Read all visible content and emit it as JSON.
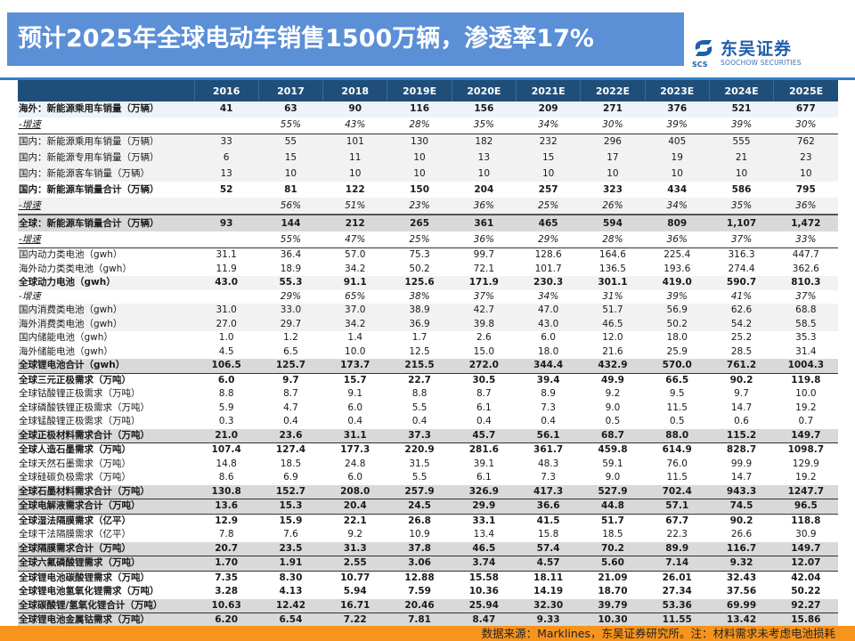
{
  "header": {
    "title": "预计2025年全球电动车销售1500万辆，渗透率17%",
    "logo": {
      "cn": "东吴证券",
      "en": "SOOCHOW SECURITIES",
      "abbr": "SCS",
      "brand_color": "#1f5fa8"
    }
  },
  "colors": {
    "title_bg": "#5b8fd6",
    "table_header_bg": "#1f4e79",
    "footer_bg": "#f7941d",
    "accent_line": "#2f7fc8"
  },
  "table": {
    "columns": [
      "",
      "2016",
      "2017",
      "2018",
      "2019E",
      "2020E",
      "2021E",
      "2022E",
      "2023E",
      "2024E",
      "2025E"
    ],
    "rows": [
      {
        "label": "海外：新能源乘用车销量（万辆）",
        "values": [
          "41",
          "63",
          "90",
          "116",
          "156",
          "209",
          "271",
          "376",
          "521",
          "677"
        ]
      },
      {
        "label": "-增速",
        "values": [
          "",
          "55%",
          "43%",
          "28%",
          "35%",
          "34%",
          "30%",
          "39%",
          "39%",
          "30%"
        ]
      },
      {
        "label": "国内：新能源乘用车销量（万辆）",
        "values": [
          "33",
          "55",
          "101",
          "130",
          "182",
          "232",
          "296",
          "405",
          "555",
          "762"
        ]
      },
      {
        "label": "国内：新能源专用车销量（万辆）",
        "values": [
          "6",
          "15",
          "11",
          "10",
          "13",
          "15",
          "17",
          "19",
          "21",
          "23"
        ]
      },
      {
        "label": "国内：新能源客车销量（万辆）",
        "values": [
          "13",
          "10",
          "10",
          "10",
          "10",
          "10",
          "10",
          "10",
          "10",
          "10"
        ]
      },
      {
        "label": "国内：新能源车销量合计（万辆）",
        "values": [
          "52",
          "81",
          "122",
          "150",
          "204",
          "257",
          "323",
          "434",
          "586",
          "795"
        ]
      },
      {
        "label": "-增速",
        "values": [
          "",
          "56%",
          "51%",
          "23%",
          "36%",
          "25%",
          "26%",
          "34%",
          "35%",
          "36%"
        ]
      },
      {
        "label": "全球：新能源车销量合计（万辆）",
        "values": [
          "93",
          "144",
          "212",
          "265",
          "361",
          "465",
          "594",
          "809",
          "1,107",
          "1,472"
        ]
      },
      {
        "label": "-增速",
        "values": [
          "",
          "55%",
          "47%",
          "25%",
          "36%",
          "29%",
          "28%",
          "36%",
          "37%",
          "33%"
        ]
      },
      {
        "label": "国内动力类电池（gwh）",
        "values": [
          "31.1",
          "36.4",
          "57.0",
          "75.3",
          "99.7",
          "128.6",
          "164.6",
          "225.4",
          "316.3",
          "447.7"
        ]
      },
      {
        "label": "海外动力类类电池（gwh）",
        "values": [
          "11.9",
          "18.9",
          "34.2",
          "50.2",
          "72.1",
          "101.7",
          "136.5",
          "193.6",
          "274.4",
          "362.6"
        ]
      },
      {
        "label": "全球动力电池（gwh）",
        "values": [
          "43.0",
          "55.3",
          "91.1",
          "125.6",
          "171.9",
          "230.3",
          "301.1",
          "419.0",
          "590.7",
          "810.3"
        ]
      },
      {
        "label": "-增速",
        "values": [
          "",
          "29%",
          "65%",
          "38%",
          "37%",
          "34%",
          "31%",
          "39%",
          "41%",
          "37%"
        ]
      },
      {
        "label": "国内消费类电池（gwh）",
        "values": [
          "31.0",
          "33.0",
          "37.0",
          "38.9",
          "42.7",
          "47.0",
          "51.7",
          "56.9",
          "62.6",
          "68.8"
        ]
      },
      {
        "label": "海外消费类电池（gwh）",
        "values": [
          "27.0",
          "29.7",
          "34.2",
          "36.9",
          "39.8",
          "43.0",
          "46.5",
          "50.2",
          "54.2",
          "58.5"
        ]
      },
      {
        "label": "国内储能电池（gwh）",
        "values": [
          "1.0",
          "1.2",
          "1.4",
          "1.7",
          "2.6",
          "6.0",
          "12.0",
          "18.0",
          "25.2",
          "35.3"
        ]
      },
      {
        "label": "海外储能电池（gwh）",
        "values": [
          "4.5",
          "6.5",
          "10.0",
          "12.5",
          "15.0",
          "18.0",
          "21.6",
          "25.9",
          "28.5",
          "31.4"
        ]
      },
      {
        "label": "全球锂电池合计（gwh）",
        "values": [
          "106.5",
          "125.7",
          "173.7",
          "215.5",
          "272.0",
          "344.4",
          "432.9",
          "570.0",
          "761.2",
          "1004.3"
        ]
      },
      {
        "label": "全球三元正极需求（万吨）",
        "values": [
          "6.0",
          "9.7",
          "15.7",
          "22.7",
          "30.5",
          "39.4",
          "49.9",
          "66.5",
          "90.2",
          "119.8"
        ]
      },
      {
        "label": "全球钴酸锂正极需求（万吨）",
        "values": [
          "8.8",
          "8.7",
          "9.1",
          "8.8",
          "8.7",
          "8.9",
          "9.2",
          "9.5",
          "9.7",
          "10.0"
        ]
      },
      {
        "label": "全球磷酸铁锂正极需求（万吨）",
        "values": [
          "5.9",
          "4.7",
          "6.0",
          "5.5",
          "6.1",
          "7.3",
          "9.0",
          "11.5",
          "14.7",
          "19.2"
        ]
      },
      {
        "label": "全球锰酸锂正极需求（万吨）",
        "values": [
          "0.3",
          "0.4",
          "0.4",
          "0.4",
          "0.4",
          "0.4",
          "0.5",
          "0.5",
          "0.6",
          "0.7"
        ]
      },
      {
        "label": "全球正极材料需求合计（万吨）",
        "values": [
          "21.0",
          "23.6",
          "31.1",
          "37.3",
          "45.7",
          "56.1",
          "68.7",
          "88.0",
          "115.2",
          "149.7"
        ]
      },
      {
        "label": "全球人造石墨需求（万吨）",
        "values": [
          "107.4",
          "127.4",
          "177.3",
          "220.9",
          "281.6",
          "361.7",
          "459.8",
          "614.9",
          "828.7",
          "1098.7"
        ]
      },
      {
        "label": "全球天然石墨需求（万吨）",
        "values": [
          "14.8",
          "18.5",
          "24.8",
          "31.5",
          "39.1",
          "48.3",
          "59.1",
          "76.0",
          "99.9",
          "129.9"
        ]
      },
      {
        "label": "全球硅碳负极需求（万吨）",
        "values": [
          "8.6",
          "6.9",
          "6.0",
          "5.5",
          "6.1",
          "7.3",
          "9.0",
          "11.5",
          "14.7",
          "19.2"
        ]
      },
      {
        "label": "全球石墨材料需求合计（万吨）",
        "values": [
          "130.8",
          "152.7",
          "208.0",
          "257.9",
          "326.9",
          "417.3",
          "527.9",
          "702.4",
          "943.3",
          "1247.7"
        ]
      },
      {
        "label": "全球电解液需求合计（万吨）",
        "values": [
          "13.6",
          "15.3",
          "20.4",
          "24.5",
          "29.9",
          "36.6",
          "44.8",
          "57.1",
          "74.5",
          "96.5"
        ]
      },
      {
        "label": "全球湿法隔膜需求（亿平）",
        "values": [
          "12.9",
          "15.9",
          "22.1",
          "26.8",
          "33.1",
          "41.5",
          "51.7",
          "67.7",
          "90.2",
          "118.8"
        ]
      },
      {
        "label": "全球干法隔膜需求（亿平）",
        "values": [
          "7.8",
          "7.6",
          "9.2",
          "10.9",
          "13.4",
          "15.8",
          "18.5",
          "22.3",
          "26.6",
          "30.9"
        ]
      },
      {
        "label": "全球隔膜需求合计（万吨）",
        "values": [
          "20.7",
          "23.5",
          "31.3",
          "37.8",
          "46.5",
          "57.4",
          "70.2",
          "89.9",
          "116.7",
          "149.7"
        ]
      },
      {
        "label": "全球六氟磷酸锂需求（万吨）",
        "values": [
          "1.70",
          "1.91",
          "2.55",
          "3.06",
          "3.74",
          "4.57",
          "5.60",
          "7.14",
          "9.32",
          "12.07"
        ]
      },
      {
        "label": "全球锂电池碳酸锂需求（万吨）",
        "values": [
          "7.35",
          "8.30",
          "10.77",
          "12.88",
          "15.58",
          "18.11",
          "21.09",
          "26.01",
          "32.43",
          "42.04"
        ]
      },
      {
        "label": "全球锂电池氢氧化锂需求（万吨）",
        "values": [
          "3.28",
          "4.13",
          "5.94",
          "7.59",
          "10.36",
          "14.19",
          "18.70",
          "27.34",
          "37.56",
          "50.22"
        ]
      },
      {
        "label": "全球碳酸锂/氢氧化锂合计（万吨）",
        "values": [
          "10.63",
          "12.42",
          "16.71",
          "20.46",
          "25.94",
          "32.30",
          "39.79",
          "53.36",
          "69.99",
          "92.27"
        ]
      },
      {
        "label": "全球锂电池金属钴需求（万吨）",
        "values": [
          "6.20",
          "6.54",
          "7.22",
          "7.81",
          "8.47",
          "9.33",
          "10.30",
          "11.55",
          "13.42",
          "15.86"
        ]
      }
    ]
  },
  "footer": {
    "note": "数据来源：Marklines，东吴证券研究所。注：材料需求未考虑电池损耗"
  }
}
